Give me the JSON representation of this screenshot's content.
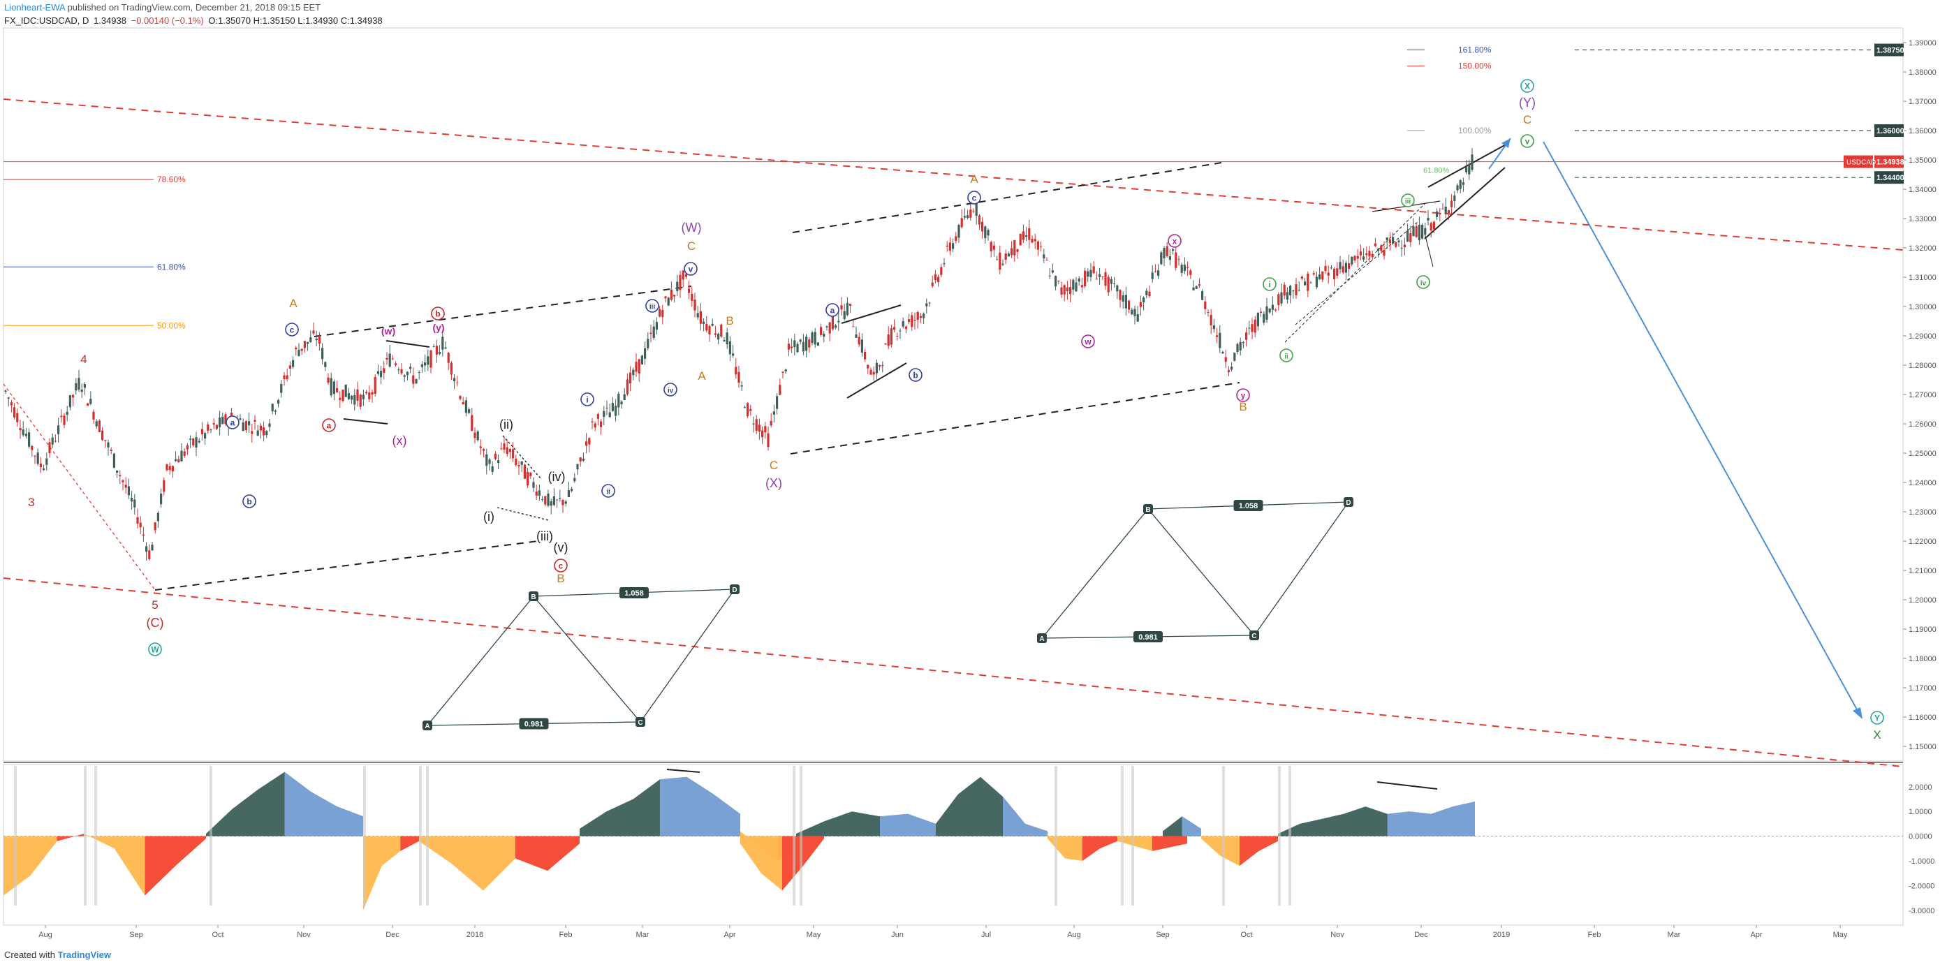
{
  "header": {
    "author": "Lionheart-EWA",
    "published": " published on TradingView.com, December 21, 2018 09:15 EET",
    "symbol": "FX_IDC:USDCAD, D",
    "last": "1.34938",
    "change": "−0.00140 (−0.1%)",
    "ohlc": "O:1.35070 H:1.35150 L:1.34930 C:1.34938"
  },
  "footer": {
    "prefix": "Created with",
    "brand": "TradingView"
  },
  "colors": {
    "up": "#3f5f5a",
    "down": "#d32f2f",
    "resistance": "#e53935",
    "projection": "#4a90d9",
    "osc_pos_dark": "#3d5f5a",
    "osc_pos_light": "#7ea7e0",
    "osc_neg_red": "#f44336",
    "osc_neg_orange": "#ffb74d"
  },
  "chart_data": {
    "type": "line",
    "title": "USDCAD, D",
    "ylim": [
      1.145,
      1.395
    ],
    "price_ticks": [
      "1.39000",
      "1.38000",
      "1.37000",
      "1.36000",
      "1.35000",
      "1.34000",
      "1.33000",
      "1.32000",
      "1.31000",
      "1.30000",
      "1.29000",
      "1.28000",
      "1.27000",
      "1.26000",
      "1.25000",
      "1.24000",
      "1.23000",
      "1.22000",
      "1.21000",
      "1.20000",
      "1.19000",
      "1.18000",
      "1.17000",
      "1.16000",
      "1.15000"
    ],
    "x_ticks": [
      "Aug",
      "Sep",
      "Oct",
      "Nov",
      "Dec",
      "2018",
      "Feb",
      "Mar",
      "Apr",
      "May",
      "Jun",
      "Jul",
      "Aug",
      "Sep",
      "Oct",
      "Nov",
      "Dec",
      "2019",
      "Feb",
      "Mar",
      "Apr",
      "May"
    ],
    "price_labels": [
      {
        "text": "1.38750",
        "value": 1.3875,
        "style": "dark"
      },
      {
        "text": "1.36000",
        "value": 1.36,
        "style": "dark"
      },
      {
        "text": "USDCAD",
        "value": 1.34938,
        "style": "red"
      },
      {
        "text": "1.34938",
        "value": 1.34938,
        "style": "red"
      },
      {
        "text": "1.34400",
        "value": 1.344,
        "style": "dark"
      }
    ],
    "fib_levels": [
      {
        "label": "161.80%",
        "value": 1.3875,
        "color": "#3f51b5"
      },
      {
        "label": "150.00%",
        "value": 1.382,
        "color": "#e53935"
      },
      {
        "label": "100.00%",
        "value": 1.36,
        "color": "#9e9e9e"
      },
      {
        "label": "78.60%",
        "value": 1.3433,
        "color": "#e53935"
      },
      {
        "label": "61.80%",
        "value": 1.3135,
        "color": "#3f51b5"
      },
      {
        "label": "50.00%",
        "value": 1.2935,
        "color": "#ff9800"
      },
      {
        "label": "61.80%",
        "value": 1.3465,
        "color": "#66bb6a"
      }
    ],
    "price_path": [
      [
        0,
        1.275
      ],
      [
        60,
        1.245
      ],
      [
        115,
        1.275
      ],
      [
        150,
        1.255
      ],
      [
        195,
        1.23
      ],
      [
        215,
        1.215
      ],
      [
        240,
        1.245
      ],
      [
        285,
        1.255
      ],
      [
        330,
        1.262
      ],
      [
        380,
        1.258
      ],
      [
        425,
        1.285
      ],
      [
        455,
        1.29
      ],
      [
        475,
        1.272
      ],
      [
        525,
        1.268
      ],
      [
        560,
        1.283
      ],
      [
        595,
        1.275
      ],
      [
        635,
        1.288
      ],
      [
        660,
        1.27
      ],
      [
        700,
        1.245
      ],
      [
        725,
        1.252
      ],
      [
        755,
        1.242
      ],
      [
        790,
        1.232
      ],
      [
        815,
        1.235
      ],
      [
        850,
        1.26
      ],
      [
        880,
        1.265
      ],
      [
        920,
        1.282
      ],
      [
        950,
        1.3
      ],
      [
        980,
        1.31
      ],
      [
        1005,
        1.295
      ],
      [
        1040,
        1.29
      ],
      [
        1070,
        1.265
      ],
      [
        1100,
        1.255
      ],
      [
        1130,
        1.285
      ],
      [
        1175,
        1.29
      ],
      [
        1215,
        1.3
      ],
      [
        1250,
        1.275
      ],
      [
        1280,
        1.292
      ],
      [
        1320,
        1.297
      ],
      [
        1360,
        1.32
      ],
      [
        1395,
        1.335
      ],
      [
        1430,
        1.315
      ],
      [
        1475,
        1.325
      ],
      [
        1520,
        1.305
      ],
      [
        1570,
        1.312
      ],
      [
        1630,
        1.297
      ],
      [
        1670,
        1.32
      ],
      [
        1720,
        1.305
      ],
      [
        1760,
        1.28
      ],
      [
        1800,
        1.295
      ],
      [
        1840,
        1.305
      ],
      [
        1890,
        1.31
      ],
      [
        1935,
        1.315
      ],
      [
        1980,
        1.32
      ],
      [
        2030,
        1.325
      ],
      [
        2060,
        1.33
      ],
      [
        2090,
        1.34
      ],
      [
        2110,
        1.35
      ]
    ],
    "wave_labels": [
      {
        "text": "3",
        "x": 45,
        "y": 725,
        "color": "#c62828"
      },
      {
        "text": "4",
        "x": 120,
        "y": 520,
        "color": "#c62828"
      },
      {
        "text": "5",
        "x": 222,
        "y": 872,
        "color": "#c62828"
      },
      {
        "text": "(C)",
        "x": 222,
        "y": 898,
        "color": "#c62828"
      },
      {
        "text": "A",
        "x": 420,
        "y": 440,
        "color": "#c77c16"
      },
      {
        "text": "(W)",
        "x": 990,
        "y": 332,
        "color": "#8e44ad"
      },
      {
        "text": "C",
        "x": 990,
        "y": 358,
        "color": "#c77c16"
      },
      {
        "text": "B",
        "x": 1045,
        "y": 465,
        "color": "#c77c16"
      },
      {
        "text": "A",
        "x": 1005,
        "y": 544,
        "color": "#c77c16"
      },
      {
        "text": "B",
        "x": 803,
        "y": 834,
        "color": "#c77c16"
      },
      {
        "text": "C",
        "x": 1108,
        "y": 672,
        "color": "#c77c16"
      },
      {
        "text": "(X)",
        "x": 1108,
        "y": 698,
        "color": "#8e44ad"
      },
      {
        "text": "A",
        "x": 1395,
        "y": 262,
        "color": "#c77c16"
      },
      {
        "text": "B",
        "x": 1780,
        "y": 588,
        "color": "#c77c16"
      },
      {
        "text": "(Y)",
        "x": 2187,
        "y": 153,
        "color": "#8e44ad"
      },
      {
        "text": "C",
        "x": 2187,
        "y": 177,
        "color": "#c77c16"
      },
      {
        "text": "(i)",
        "x": 700,
        "y": 746,
        "color": "#222"
      },
      {
        "text": "(ii)",
        "x": 725,
        "y": 614,
        "color": "#222"
      },
      {
        "text": "(iii)",
        "x": 780,
        "y": 774,
        "color": "#222"
      },
      {
        "text": "(iv)",
        "x": 797,
        "y": 689,
        "color": "#222"
      },
      {
        "text": "(v)",
        "x": 803,
        "y": 790,
        "color": "#222"
      },
      {
        "text": "(x)",
        "x": 572,
        "y": 637,
        "color": "#b0249a"
      },
      {
        "text": "X",
        "x": 2688,
        "y": 1058,
        "color": "#2e7d32"
      }
    ],
    "circle_labels": [
      {
        "text": "W",
        "x": 222,
        "y": 930,
        "color": "#26a69a"
      },
      {
        "text": "a",
        "x": 333,
        "y": 605,
        "color": "#303f9f"
      },
      {
        "text": "b",
        "x": 357,
        "y": 718,
        "color": "#303f9f"
      },
      {
        "text": "c",
        "x": 418,
        "y": 472,
        "color": "#303f9f"
      },
      {
        "text": "a",
        "x": 471,
        "y": 609,
        "color": "#c62828"
      },
      {
        "text": "b",
        "x": 627,
        "y": 449,
        "color": "#c62828"
      },
      {
        "text": "i",
        "x": 841,
        "y": 572,
        "color": "#303f9f"
      },
      {
        "text": "ii",
        "x": 871,
        "y": 703,
        "color": "#303f9f"
      },
      {
        "text": "iii",
        "x": 934,
        "y": 438,
        "color": "#303f9f"
      },
      {
        "text": "iv",
        "x": 960,
        "y": 558,
        "color": "#303f9f"
      },
      {
        "text": "v",
        "x": 989,
        "y": 385,
        "color": "#303f9f"
      },
      {
        "text": "c",
        "x": 803,
        "y": 810,
        "color": "#c62828"
      },
      {
        "text": "a",
        "x": 1192,
        "y": 444,
        "color": "#303f9f"
      },
      {
        "text": "b",
        "x": 1311,
        "y": 537,
        "color": "#303f9f"
      },
      {
        "text": "c",
        "x": 1395,
        "y": 283,
        "color": "#303f9f"
      },
      {
        "text": "w",
        "x": 1558,
        "y": 489,
        "color": "#b0249a"
      },
      {
        "text": "x",
        "x": 1682,
        "y": 345,
        "color": "#b0249a"
      },
      {
        "text": "y",
        "x": 1780,
        "y": 566,
        "color": "#b0249a"
      },
      {
        "text": "i",
        "x": 1818,
        "y": 407,
        "color": "#43a047"
      },
      {
        "text": "ii",
        "x": 1842,
        "y": 509,
        "color": "#43a047"
      },
      {
        "text": "iii",
        "x": 2016,
        "y": 287,
        "color": "#43a047"
      },
      {
        "text": "iv",
        "x": 2038,
        "y": 404,
        "color": "#43a047"
      },
      {
        "text": "v",
        "x": 2187,
        "y": 202,
        "color": "#43a047"
      },
      {
        "text": "X",
        "x": 2187,
        "y": 123,
        "color": "#26a69a"
      },
      {
        "text": "Y",
        "x": 2688,
        "y": 1028,
        "color": "#26a69a"
      }
    ],
    "boxed_labels": [
      {
        "text": "(w)",
        "x": 556,
        "y": 479,
        "color": "#b0249a"
      },
      {
        "text": "(y)",
        "x": 628,
        "y": 474,
        "color": "#b0249a"
      }
    ],
    "harmonic_patterns": [
      {
        "points": {
          "A": [
            612,
            1039
          ],
          "B": [
            764,
            854
          ],
          "C": [
            917,
            1034
          ],
          "D": [
            1052,
            844
          ]
        },
        "ratios": [
          "1.058",
          "0.981"
        ]
      },
      {
        "points": {
          "A": [
            1492,
            914
          ],
          "B": [
            1644,
            729
          ],
          "C": [
            1796,
            910
          ],
          "D": [
            1931,
            719
          ]
        },
        "ratios": [
          "1.058",
          "0.981"
        ]
      }
    ],
    "oscillator": {
      "ylim": [
        -3.6,
        2.9
      ],
      "ticks": [
        "2.0000",
        "1.0000",
        "0.0000",
        "-1.0000",
        "-2.0000",
        "-3.0000"
      ],
      "segments": [
        {
          "x": [
            5,
            120
          ],
          "v": [
            -2.4,
            -1.6,
            -0.2,
            0.1
          ],
          "kind": "neg"
        },
        {
          "x": [
            120,
            295
          ],
          "v": [
            0.1,
            -0.5,
            -2.4,
            -1.2,
            -0.1
          ],
          "kind": "neg"
        },
        {
          "x": [
            295,
            520
          ],
          "v": [
            0.1,
            1.1,
            1.9,
            2.6,
            1.8,
            1.2,
            0.8
          ],
          "kind": "pos"
        },
        {
          "x": [
            520,
            600
          ],
          "v": [
            -3.0,
            -1.2,
            -0.6,
            -0.2
          ],
          "kind": "neg"
        },
        {
          "x": [
            600,
            830
          ],
          "v": [
            -0.2,
            -1.1,
            -2.2,
            -0.9,
            -1.4,
            -0.3
          ],
          "kind": "neg"
        },
        {
          "x": [
            830,
            1060
          ],
          "v": [
            0.3,
            1.0,
            1.5,
            2.3,
            2.4,
            1.7,
            0.9
          ],
          "kind": "pos"
        },
        {
          "x": [
            1060,
            1140
          ],
          "v": [
            0.2,
            -0.4,
            -1.0,
            -0.4
          ],
          "kind": "neg"
        },
        {
          "x": [
            1060,
            1180
          ],
          "v": [
            -0.3,
            -1.5,
            -2.2,
            -1.2,
            -0.1
          ],
          "kind": "neg"
        },
        {
          "x": [
            1140,
            1340
          ],
          "v": [
            0.1,
            0.6,
            1.0,
            0.8,
            0.9,
            0.5
          ],
          "kind": "pos"
        },
        {
          "x": [
            1340,
            1500
          ],
          "v": [
            0.5,
            1.7,
            2.4,
            1.6,
            0.5,
            0.2
          ],
          "kind": "pos"
        },
        {
          "x": [
            1500,
            1600
          ],
          "v": [
            -0.1,
            -0.9,
            -1.0,
            -0.5,
            -0.2
          ],
          "kind": "neg"
        },
        {
          "x": [
            1600,
            1700
          ],
          "v": [
            -0.2,
            -0.6,
            -0.3
          ],
          "kind": "neg"
        },
        {
          "x": [
            1665,
            1720
          ],
          "v": [
            0.2,
            0.8,
            0.3
          ],
          "kind": "pos"
        },
        {
          "x": [
            1720,
            1830
          ],
          "v": [
            -0.1,
            -0.8,
            -1.2,
            -0.6,
            -0.2
          ],
          "kind": "neg"
        },
        {
          "x": [
            1830,
            2112
          ],
          "v": [
            0.1,
            0.5,
            0.7,
            0.9,
            1.2,
            0.9,
            1.0,
            0.9,
            1.2,
            1.4
          ],
          "kind": "pos"
        }
      ]
    }
  }
}
